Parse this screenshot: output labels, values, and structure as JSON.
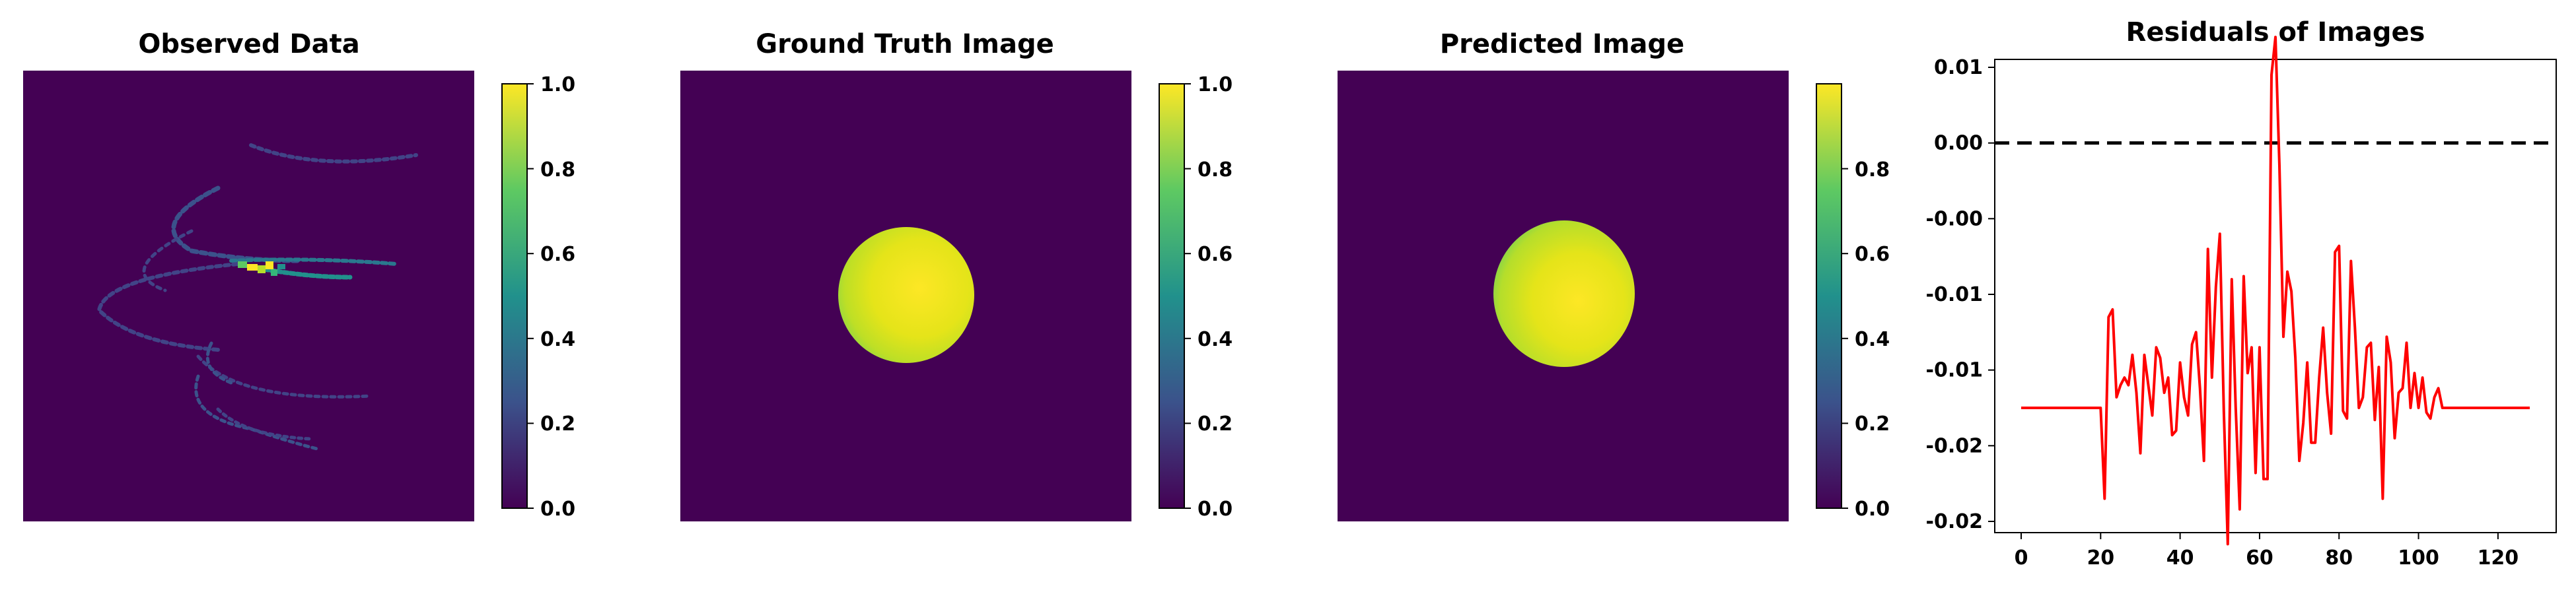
{
  "colors": {
    "viridis_dark": "#440154",
    "viridis_mid": "#21918c",
    "viridis_light": "#fde725",
    "residual_line": "#ff0000",
    "zero_line": "#000000"
  },
  "panels": {
    "observed": {
      "title": "Observed Data",
      "colorbar_ticks": [
        "0.0",
        "0.2",
        "0.4",
        "0.6",
        "0.8",
        "1.0"
      ],
      "vmin": 0.0,
      "vmax": 1.0
    },
    "ground_truth": {
      "title": "Ground Truth Image",
      "colorbar_ticks": [
        "0.0",
        "0.2",
        "0.4",
        "0.6",
        "0.8",
        "1.0"
      ],
      "vmin": 0.0,
      "vmax": 1.0
    },
    "predicted": {
      "title": "Predicted Image",
      "colorbar_ticks": [
        "0.0",
        "0.2",
        "0.4",
        "0.6",
        "0.8"
      ],
      "vmin": 0.0,
      "vmax": 1.0
    }
  },
  "chart_data": [
    {
      "type": "heatmap",
      "title": "Observed Data",
      "description_values": "sparse helical streaks, peak intensity 1.0 near centre",
      "zlim": [
        0.0,
        1.0
      ]
    },
    {
      "type": "heatmap",
      "title": "Ground Truth Image",
      "zlim": [
        0.0,
        1.0
      ]
    },
    {
      "type": "heatmap",
      "title": "Predicted Image",
      "zlim": [
        0.0,
        1.0
      ]
    },
    {
      "type": "line",
      "title": "Residuals of Images",
      "xlim": [
        0,
        128
      ],
      "ylim": [
        -0.02,
        0.01
      ],
      "x_ticks": [
        "0",
        "20",
        "40",
        "60",
        "80",
        "100",
        "120"
      ],
      "y_ticks": [
        "0.01",
        "0.00",
        "-0.00",
        "-0.01",
        "-0.01",
        "-0.02",
        "-0.02"
      ],
      "y_tick_values": [
        0.01,
        0.005,
        0.0,
        -0.005,
        -0.01,
        -0.015,
        -0.02
      ],
      "reference_line": {
        "y": 0.005,
        "style": "dashed"
      },
      "series": [
        {
          "x": [
            0,
            2,
            4,
            6,
            8,
            10,
            12,
            14,
            16,
            18,
            19,
            20,
            21,
            22,
            23,
            24,
            25,
            26,
            27,
            28,
            29,
            30,
            31,
            32,
            33,
            34,
            35,
            36,
            37,
            38,
            39,
            40,
            41,
            42,
            43,
            44,
            45,
            46,
            47,
            48,
            49,
            50,
            51,
            52,
            53,
            54,
            55,
            56,
            57,
            58,
            59,
            60,
            61,
            62,
            63,
            64,
            65,
            66,
            67,
            68,
            69,
            70,
            71,
            72,
            73,
            74,
            75,
            76,
            77,
            78,
            79,
            80,
            81,
            82,
            83,
            84,
            85,
            86,
            87,
            88,
            89,
            90,
            91,
            92,
            93,
            94,
            95,
            96,
            97,
            98,
            99,
            100,
            101,
            102,
            103,
            104,
            105,
            106,
            107,
            108,
            109,
            110,
            111,
            112,
            114,
            116,
            118,
            120,
            122,
            124,
            126,
            128
          ],
          "y": [
            -0.0125,
            -0.0125,
            -0.0125,
            -0.0125,
            -0.0125,
            -0.0125,
            -0.0125,
            -0.0125,
            -0.0125,
            -0.0125,
            -0.0125,
            -0.0125,
            -0.0185,
            -0.0065,
            -0.006,
            -0.0118,
            -0.011,
            -0.0105,
            -0.011,
            -0.009,
            -0.0115,
            -0.0155,
            -0.009,
            -0.011,
            -0.013,
            -0.0085,
            -0.0092,
            -0.0115,
            -0.0105,
            -0.0143,
            -0.014,
            -0.0095,
            -0.0118,
            -0.013,
            -0.0083,
            -0.0075,
            -0.0112,
            -0.016,
            -0.002,
            -0.0105,
            -0.0045,
            -0.001,
            -0.0127,
            -0.0215,
            -0.004,
            -0.0125,
            -0.0192,
            -0.0038,
            -0.0102,
            -0.0085,
            -0.0168,
            -0.0085,
            -0.0172,
            -0.0172,
            0.0095,
            0.012,
            0.0035,
            -0.0078,
            -0.0035,
            -0.0048,
            -0.0092,
            -0.016,
            -0.0135,
            -0.0095,
            -0.0148,
            -0.0148,
            -0.0105,
            -0.0072,
            -0.0115,
            -0.0142,
            -0.0022,
            -0.0018,
            -0.0127,
            -0.0132,
            -0.0028,
            -0.0072,
            -0.0125,
            -0.0118,
            -0.0085,
            -0.0082,
            -0.0133,
            -0.0098,
            -0.0185,
            -0.0078,
            -0.0095,
            -0.0145,
            -0.0115,
            -0.0112,
            -0.0082,
            -0.0125,
            -0.0102,
            -0.0125,
            -0.0105,
            -0.0128,
            -0.0132,
            -0.0118,
            -0.0112,
            -0.0125,
            -0.0125,
            -0.0125,
            -0.0125,
            -0.0125,
            -0.0125,
            -0.0125,
            -0.0125,
            -0.0125,
            -0.0125,
            -0.0125,
            -0.0125,
            -0.0125,
            -0.0125,
            -0.0125
          ]
        }
      ]
    }
  ]
}
